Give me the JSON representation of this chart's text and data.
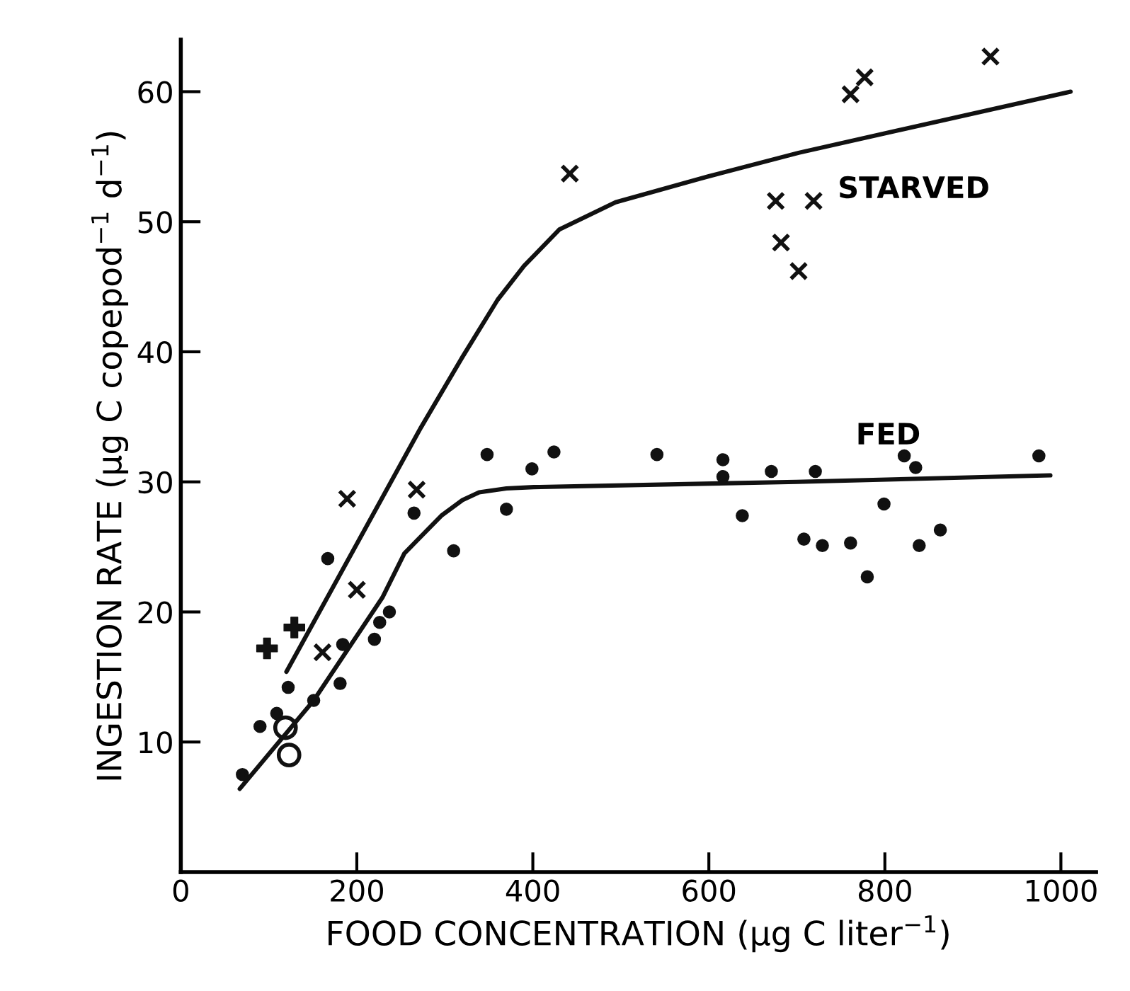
{
  "chart_data": {
    "type": "scatter",
    "xlabel": "FOOD CONCENTRATION (µg C liter$^{−1}$)",
    "ylabel": "INGESTION RATE (µg C copepod$^{−1}$ d$^{−1}$)",
    "xlim": [
      0,
      1040
    ],
    "ylim": [
      0,
      64
    ],
    "xticks": [
      0,
      200,
      400,
      600,
      800,
      1000
    ],
    "yticks": [
      10,
      20,
      30,
      40,
      50,
      60
    ],
    "grid": false,
    "legend": false,
    "series": [
      {
        "marker": "circle",
        "color": "#111111",
        "x": [
          348,
          399,
          424,
          370,
          310,
          265,
          167,
          237,
          226,
          220,
          181,
          184,
          122,
          151,
          109,
          90,
          70,
          541,
          616,
          616,
          671,
          721,
          638,
          708,
          729,
          761,
          780,
          799,
          822,
          835,
          839,
          863,
          975
        ],
        "values": [
          32.1,
          31.0,
          32.3,
          27.9,
          24.7,
          27.6,
          24.1,
          20.0,
          19.2,
          17.9,
          14.5,
          17.5,
          14.2,
          13.2,
          12.2,
          11.2,
          7.5,
          32.1,
          31.7,
          30.4,
          30.8,
          30.8,
          27.4,
          25.6,
          25.1,
          25.3,
          22.7,
          28.3,
          32.0,
          31.1,
          25.1,
          26.3,
          32.0
        ]
      },
      {
        "marker": "cross",
        "color": "#111111",
        "x": [
          189,
          268,
          200,
          161,
          442,
          676,
          719,
          682,
          702,
          761,
          777,
          920
        ],
        "values": [
          28.7,
          29.4,
          21.7,
          16.9,
          53.7,
          51.6,
          51.6,
          48.4,
          46.2,
          59.8,
          61.1,
          62.7
        ]
      },
      {
        "marker": "plus",
        "color": "#111111",
        "x": [
          98,
          129
        ],
        "values": [
          17.2,
          18.8
        ]
      },
      {
        "marker": "open circle",
        "color": "#111111",
        "x": [
          119,
          123
        ],
        "values": [
          11.1,
          9.0
        ]
      },
      {
        "type": "line",
        "name": "FED",
        "marker": "none",
        "line_style": "solid",
        "color": "#111111",
        "x": [
          67,
          151,
          229,
          254,
          296,
          320,
          339,
          370,
          401,
          700,
          988
        ],
        "values": [
          6.4,
          13.2,
          21.1,
          24.5,
          27.4,
          28.6,
          29.2,
          29.5,
          29.6,
          30.0,
          30.5
        ]
      },
      {
        "type": "line",
        "name": "STARVED",
        "marker": "none",
        "line_style": "solid",
        "color": "#111111",
        "x": [
          120,
          273,
          320,
          360,
          390,
          430,
          494,
          600,
          702,
          1011
        ],
        "values": [
          15.4,
          34.2,
          39.6,
          44.0,
          46.6,
          49.4,
          51.5,
          53.5,
          55.3,
          60.0
        ]
      }
    ]
  }
}
